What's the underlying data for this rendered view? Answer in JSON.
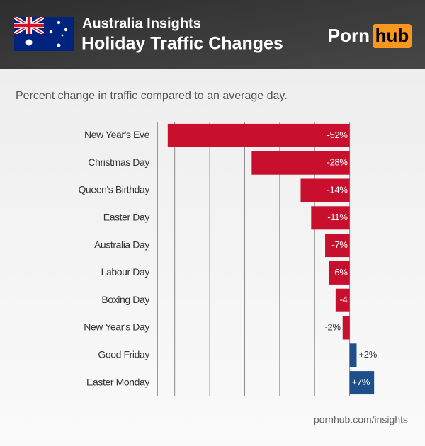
{
  "chart_data": {
    "type": "hbar",
    "supertitle": "Australia Insights",
    "title": "Holiday Traffic Changes",
    "brand": [
      "Porn",
      "hub"
    ],
    "subtitle": "Percent change in traffic compared to an average day.",
    "categories": [
      "New Year's Eve",
      "Christmas Day",
      "Queen's Birthday",
      "Easter Day",
      "Australia Day",
      "Labour Day",
      "Boxing Day",
      "New Year's Day",
      "Good Friday",
      "Easter Monday"
    ],
    "values": [
      -52,
      -28,
      -14,
      -11,
      -7,
      -6,
      -4,
      -2,
      2,
      7
    ],
    "value_labels": [
      "-52%",
      "-28%",
      "-14%",
      "-11%",
      "-7%",
      "-6%",
      "-4",
      "-2%",
      "+2%",
      "+7%"
    ],
    "colors": [
      "#c8102e",
      "#c8102e",
      "#c8102e",
      "#c8102e",
      "#c8102e",
      "#c8102e",
      "#c8102e",
      "#c8102e",
      "#1e4f8a",
      "#1e4f8a"
    ],
    "xlim": [
      -55,
      10
    ],
    "xticks": [
      -50,
      -40,
      -30,
      -20,
      -10,
      0
    ],
    "grid": true,
    "source": "pornhub.com/insights"
  }
}
